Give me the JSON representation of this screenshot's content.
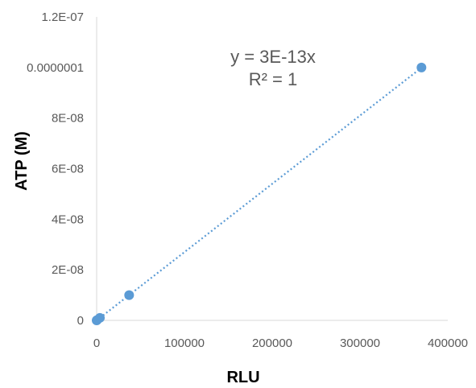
{
  "chart_data": {
    "type": "scatter",
    "xlabel": "RLU",
    "ylabel": "ATP (M)",
    "xlim": [
      0,
      400000
    ],
    "ylim": [
      0,
      1.2e-07
    ],
    "grid": false,
    "x_ticks": [
      {
        "value": 0,
        "label": "0"
      },
      {
        "value": 100000,
        "label": "100000"
      },
      {
        "value": 200000,
        "label": "200000"
      },
      {
        "value": 300000,
        "label": "300000"
      },
      {
        "value": 400000,
        "label": "400000"
      }
    ],
    "y_ticks": [
      {
        "value": 0,
        "label": "0"
      },
      {
        "value": 2e-08,
        "label": "2E-08"
      },
      {
        "value": 4e-08,
        "label": "4E-08"
      },
      {
        "value": 6e-08,
        "label": "6E-08"
      },
      {
        "value": 8e-08,
        "label": "8E-08"
      },
      {
        "value": 1e-07,
        "label": "0.0000001"
      },
      {
        "value": 1.2e-07,
        "label": "1.2E-07"
      }
    ],
    "series": [
      {
        "color": "#5B9BD5",
        "points": [
          {
            "x": 0,
            "y": 0
          },
          {
            "x": 400,
            "y": 1e-10
          },
          {
            "x": 3700,
            "y": 1e-09
          },
          {
            "x": 37000,
            "y": 1e-08
          },
          {
            "x": 370000,
            "y": 1e-07
          }
        ]
      }
    ],
    "trendline": {
      "type": "linear",
      "slope": 2.7e-13,
      "intercept": 0,
      "x_range": [
        0,
        370000
      ],
      "style": "dotted",
      "color": "#5B9BD5"
    },
    "annotations": {
      "equation": "y = 3E-13x",
      "r_squared": "R² = 1"
    }
  }
}
